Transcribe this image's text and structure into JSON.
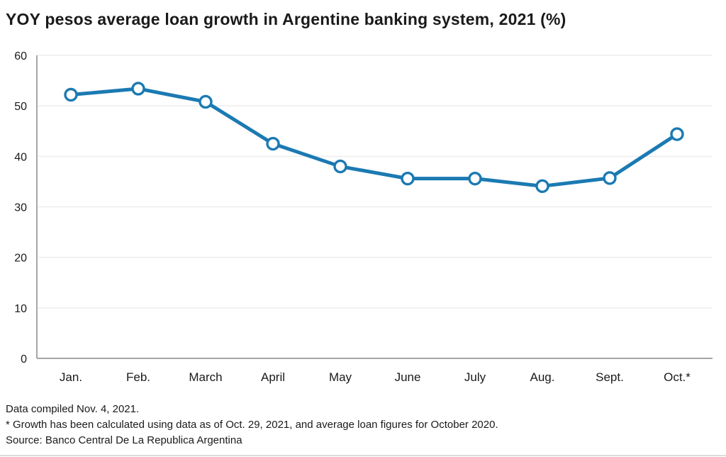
{
  "title": "YOY pesos average loan growth in Argentine banking system, 2021 (%)",
  "footnotes": {
    "compiled": "Data compiled Nov. 4, 2021.",
    "note": "* Growth has been calculated using data as of Oct. 29, 2021, and average loan figures for October 2020.",
    "source": "Source: Banco Central De La Republica Argentina"
  },
  "colors": {
    "line": "#1b7ab2",
    "marker_fill": "#ffffff",
    "axis": "#a6a6a6",
    "grid": "#ededed",
    "tick_text": "#1a1a1a"
  },
  "chart_data": {
    "type": "line",
    "title": "YOY pesos average loan growth in Argentine banking system, 2021 (%)",
    "categories": [
      "Jan.",
      "Feb.",
      "March",
      "April",
      "May",
      "June",
      "July",
      "Aug.",
      "Sept.",
      "Oct.*"
    ],
    "series": [
      {
        "name": "YOY pesos average loan growth (%)",
        "values": [
          52.2,
          53.4,
          50.8,
          42.5,
          38.0,
          35.6,
          35.6,
          34.1,
          35.7,
          44.4
        ]
      }
    ],
    "xlabel": "",
    "ylabel": "",
    "ylim": [
      0,
      60
    ],
    "ytick_step": 10,
    "yticks": [
      0,
      10,
      20,
      30,
      40,
      50,
      60
    ],
    "grid": "horizontal",
    "legend": "none",
    "marker": "open-circle"
  }
}
